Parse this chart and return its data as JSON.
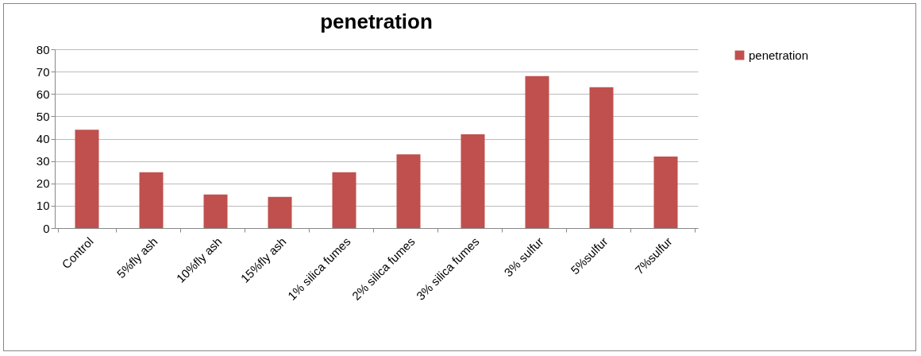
{
  "chart_data": {
    "type": "bar",
    "title": "penetration",
    "categories": [
      "Control",
      "5%fly ash",
      "10%fly ash",
      "15%fly ash",
      "1% silica fumes",
      "2% silica fumes",
      "3% silica fumes",
      "3% sulfur",
      "5%sulfur",
      "7%sulfur"
    ],
    "series": [
      {
        "name": "penetration",
        "color": "#c0504d",
        "values": [
          44,
          25,
          15,
          14,
          25,
          33,
          42,
          68,
          63,
          32
        ]
      }
    ],
    "ylim": [
      0,
      80
    ],
    "yticks": [
      0,
      10,
      20,
      30,
      40,
      50,
      60,
      70,
      80
    ],
    "grid": "y",
    "legend": "right"
  }
}
